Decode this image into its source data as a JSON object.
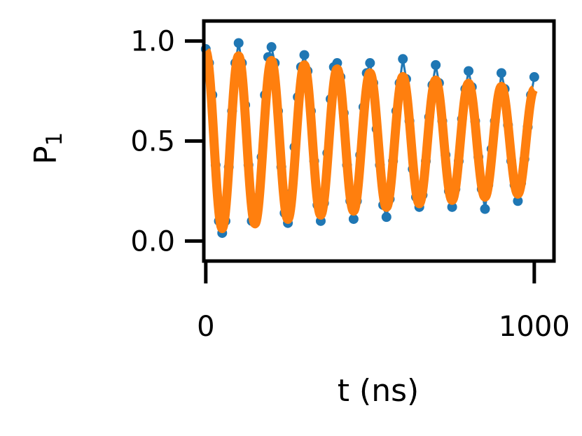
{
  "chart_data": {
    "type": "line",
    "title": "",
    "xlabel": "t (ns)",
    "ylabel_main": "P",
    "ylabel_sub": "1",
    "xlim": [
      -6,
      1060
    ],
    "ylim": [
      -0.1,
      1.1
    ],
    "xticks": [
      0,
      1000
    ],
    "xtick_labels": [
      "0",
      "1000"
    ],
    "yticks": [
      0.0,
      0.5,
      1.0
    ],
    "ytick_labels": [
      "0.0",
      "0.5",
      "1.0"
    ],
    "grid": false,
    "legend": "none",
    "series": [
      {
        "kind": "scatter-line",
        "color": "#1f77b4",
        "x": [
          0,
          10,
          20,
          30,
          40,
          50,
          60,
          70,
          80,
          90,
          100,
          110,
          120,
          130,
          140,
          150,
          160,
          170,
          180,
          190,
          200,
          210,
          220,
          230,
          240,
          250,
          260,
          270,
          280,
          290,
          300,
          310,
          320,
          330,
          340,
          350,
          360,
          370,
          380,
          390,
          400,
          410,
          420,
          430,
          440,
          450,
          460,
          470,
          480,
          490,
          500,
          510,
          520,
          530,
          540,
          550,
          560,
          570,
          580,
          590,
          600,
          610,
          620,
          630,
          640,
          650,
          660,
          670,
          680,
          690,
          700,
          710,
          720,
          730,
          740,
          750,
          760,
          770,
          780,
          790,
          800,
          810,
          820,
          830,
          840,
          850,
          860,
          870,
          880,
          890,
          900,
          910,
          920,
          930,
          940,
          950,
          960,
          970,
          980,
          990,
          1000
        ],
        "y": [
          0.96,
          0.89,
          0.73,
          0.38,
          0.1,
          0.04,
          0.1,
          0.37,
          0.65,
          0.89,
          0.99,
          0.89,
          0.68,
          0.38,
          0.1,
          0.14,
          0.22,
          0.42,
          0.73,
          0.92,
          0.97,
          0.89,
          0.65,
          0.37,
          0.14,
          0.09,
          0.24,
          0.47,
          0.72,
          0.87,
          0.93,
          0.85,
          0.65,
          0.4,
          0.18,
          0.1,
          0.19,
          0.44,
          0.71,
          0.87,
          0.89,
          0.82,
          0.64,
          0.38,
          0.2,
          0.11,
          0.2,
          0.43,
          0.67,
          0.84,
          0.89,
          0.79,
          0.56,
          0.38,
          0.18,
          0.12,
          0.21,
          0.4,
          0.65,
          0.79,
          0.91,
          0.81,
          0.6,
          0.36,
          0.22,
          0.17,
          0.23,
          0.4,
          0.62,
          0.78,
          0.88,
          0.79,
          0.6,
          0.43,
          0.25,
          0.17,
          0.26,
          0.4,
          0.61,
          0.76,
          0.85,
          0.77,
          0.6,
          0.42,
          0.26,
          0.16,
          0.28,
          0.46,
          0.6,
          0.7,
          0.84,
          0.76,
          0.58,
          0.4,
          0.28,
          0.2,
          0.29,
          0.41,
          0.57,
          0.73,
          0.82
        ]
      },
      {
        "kind": "fit",
        "color": "#ff7f0e",
        "amplitude": 0.45,
        "offset": 0.5,
        "period_ns": 100,
        "decay_ns": 1800,
        "x_range": [
          0,
          1000
        ]
      }
    ]
  }
}
